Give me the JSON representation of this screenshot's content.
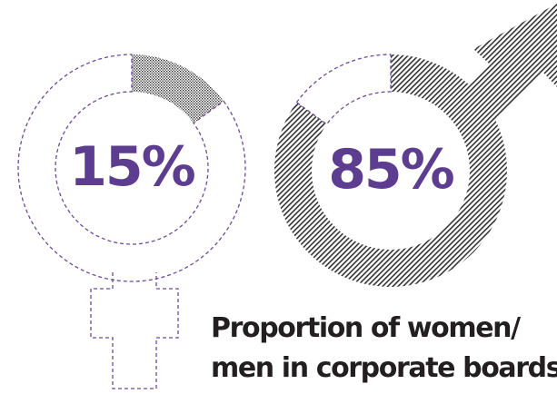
{
  "colors": {
    "accent": "#5c3d8f",
    "dash": "#6a4c9c",
    "fill": "#333333",
    "text": "#231f20"
  },
  "chart_data": [
    {
      "type": "pie",
      "series": [
        {
          "name": "women",
          "values": [
            15,
            85
          ]
        }
      ],
      "data_label": "15%",
      "pattern": "dotted",
      "icon": "female-symbol-icon"
    },
    {
      "type": "pie",
      "series": [
        {
          "name": "men",
          "values": [
            85,
            15
          ]
        }
      ],
      "data_label": "85%",
      "pattern": "diagonal-hatch",
      "icon": "male-symbol-icon"
    }
  ],
  "caption": {
    "line1": "Proportion of women/",
    "line2": "men in corporate boards"
  }
}
